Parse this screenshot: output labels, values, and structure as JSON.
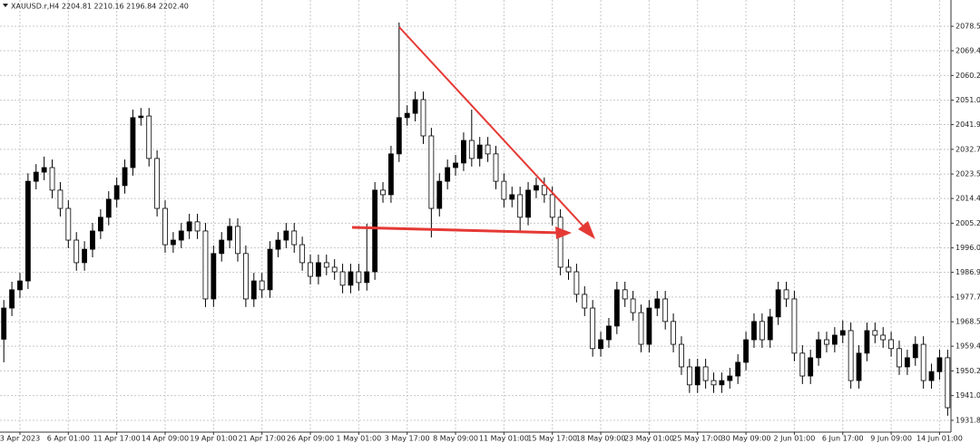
{
  "chart_data": {
    "type": "candlestick",
    "title": "XAUUSD.r,H4  2204.81 2210.16 2196.84 2202.40",
    "categories": [
      null,
      null,
      "3 Apr 2023",
      null,
      null,
      null,
      null,
      null,
      "6 Apr 01:00",
      null,
      null,
      null,
      null,
      null,
      "11 Apr 17:00",
      null,
      null,
      null,
      null,
      null,
      "14 Apr 09:00",
      null,
      null,
      null,
      null,
      null,
      "19 Apr 01:00",
      null,
      null,
      null,
      null,
      null,
      "21 Apr 17:00",
      null,
      null,
      null,
      null,
      null,
      "26 Apr 09:00",
      null,
      null,
      null,
      null,
      null,
      "1 May 01:00",
      null,
      null,
      null,
      null,
      null,
      "3 May 17:00",
      null,
      null,
      null,
      null,
      null,
      "8 May 09:00",
      null,
      null,
      null,
      null,
      null,
      "11 May 01:00",
      null,
      null,
      null,
      null,
      null,
      "15 May 17:00",
      null,
      null,
      null,
      null,
      null,
      "18 May 09:00",
      null,
      null,
      null,
      null,
      null,
      "23 May 01:00",
      null,
      null,
      null,
      null,
      null,
      "25 May 17:00",
      null,
      null,
      null,
      null,
      null,
      "30 May 09:00",
      null,
      null,
      null,
      null,
      null,
      "2 Jun 01:00",
      null,
      null,
      null,
      null,
      null,
      "6 Jun 17:00",
      null,
      null,
      null,
      null,
      null,
      "9 Jun 09:00",
      null,
      null,
      null,
      null,
      null,
      "14 Jun 01:00",
      null
    ],
    "open": [
      1962.0,
      1973.6,
      1980.4,
      1983.7,
      2020.8,
      2024.2,
      2025.9,
      2017.5,
      2010.7,
      1998.9,
      1990.5,
      1995.5,
      2002.3,
      2007.4,
      2014.1,
      2019.2,
      2025.9,
      2044.5,
      2045.1,
      2029.3,
      2010.7,
      1997.2,
      1998.9,
      2002.3,
      2005.7,
      2002.3,
      1977.0,
      1993.9,
      1998.9,
      2004.0,
      1993.9,
      1977.0,
      1983.7,
      1980.4,
      1995.5,
      1998.9,
      2002.3,
      1997.2,
      1990.5,
      1985.4,
      1990.5,
      1988.8,
      1987.1,
      1982.1,
      1987.1,
      1983.1,
      1987.1,
      2017.5,
      2015.8,
      2031.0,
      2044.5,
      2046.1,
      2051.2,
      2037.7,
      2010.7,
      2020.8,
      2025.9,
      2027.6,
      2036.0,
      2029.3,
      2034.3,
      2031.0,
      2020.8,
      2014.1,
      2015.8,
      2007.4,
      2017.5,
      2019.2,
      2015.8,
      2007.4,
      1988.8,
      1987.1,
      1978.7,
      1973.6,
      1958.5,
      1961.8,
      1966.9,
      1980.4,
      1977.0,
      1971.9,
      1960.1,
      1973.6,
      1977.0,
      1968.6,
      1960.1,
      1951.7,
      1945.0,
      1951.7,
      1946.6,
      1945.0,
      1946.6,
      1948.3,
      1953.4,
      1961.8,
      1968.6,
      1961.8,
      1970.3,
      1980.4,
      1977.0,
      1956.8,
      1948.3,
      1955.1,
      1961.8,
      1960.1,
      1963.5,
      1965.2,
      1946.6,
      1956.8,
      1965.2,
      1963.5,
      1961.8,
      1958.5,
      1951.7,
      1955.1,
      1960.1,
      1946.6,
      1949.9,
      1955.1
    ],
    "high": [
      1976.6,
      1983.4,
      1986.7,
      2023.8,
      2027.2,
      2030.0,
      2028.9,
      2020.5,
      2013.7,
      2001.9,
      1998.5,
      2005.3,
      2010.4,
      2017.1,
      2022.2,
      2028.9,
      2047.5,
      2048.1,
      2048.1,
      2032.3,
      2013.7,
      2001.9,
      2005.3,
      2008.7,
      2008.7,
      2005.3,
      1996.9,
      2001.9,
      2007.0,
      2007.0,
      1996.9,
      1986.7,
      1986.7,
      1998.5,
      2001.9,
      2005.3,
      2005.3,
      2000.2,
      1993.5,
      1993.5,
      1993.5,
      1991.8,
      1990.1,
      1990.1,
      1990.1,
      2005.0,
      2020.5,
      2020.5,
      2034.0,
      2079.9,
      2049.1,
      2054.2,
      2054.2,
      2040.7,
      2023.8,
      2028.9,
      2030.6,
      2039.0,
      2047.5,
      2037.3,
      2037.3,
      2034.0,
      2023.8,
      2018.8,
      2018.8,
      2020.5,
      2022.2,
      2022.2,
      2018.8,
      2010.4,
      1991.8,
      1990.1,
      1981.7,
      1976.6,
      1964.8,
      1969.9,
      1983.4,
      1983.4,
      1980.0,
      1974.9,
      1976.6,
      1980.0,
      1980.0,
      1971.6,
      1963.1,
      1954.7,
      1954.7,
      1954.7,
      1949.6,
      1949.6,
      1951.3,
      1956.4,
      1964.8,
      1971.6,
      1971.6,
      1973.3,
      1983.4,
      1983.4,
      1980.0,
      1959.8,
      1958.1,
      1964.8,
      1964.8,
      1966.5,
      1969.0,
      1968.2,
      1959.8,
      1968.2,
      1968.2,
      1966.5,
      1964.8,
      1961.5,
      1958.1,
      1963.1,
      1963.1,
      1952.9,
      1958.1,
      1958.1
    ],
    "low": [
      1953.4,
      1970.6,
      1977.4,
      1980.7,
      2017.8,
      2021.2,
      2014.5,
      2007.7,
      1995.9,
      1987.5,
      1987.5,
      1992.5,
      1999.3,
      2004.4,
      2011.1,
      2016.2,
      2022.9,
      2041.5,
      2026.3,
      2007.7,
      1994.2,
      1994.2,
      1995.9,
      1999.3,
      1999.3,
      1974.0,
      1974.0,
      1990.9,
      1995.9,
      1990.9,
      1974.0,
      1974.0,
      1977.4,
      1977.4,
      1992.5,
      1995.9,
      1994.2,
      1987.5,
      1982.4,
      1982.4,
      1985.8,
      1984.1,
      1979.1,
      1979.1,
      1980.1,
      1980.1,
      1984.1,
      2012.8,
      2012.8,
      2028.0,
      2041.5,
      2043.1,
      2034.7,
      1999.9,
      2007.7,
      2017.8,
      2022.9,
      2024.6,
      2026.3,
      2026.3,
      2028.0,
      2017.8,
      2011.1,
      2011.1,
      2002.0,
      2004.4,
      2014.5,
      2012.8,
      2004.4,
      1985.8,
      1984.1,
      1975.7,
      1970.6,
      1955.5,
      1955.5,
      1958.8,
      1963.9,
      1974.0,
      1968.9,
      1957.1,
      1957.1,
      1970.6,
      1965.6,
      1957.1,
      1948.7,
      1942.0,
      1942.0,
      1943.6,
      1942.0,
      1942.0,
      1943.6,
      1945.3,
      1950.4,
      1958.8,
      1958.8,
      1958.8,
      1967.3,
      1974.0,
      1953.8,
      1945.3,
      1945.3,
      1952.1,
      1957.1,
      1957.1,
      1960.5,
      1943.6,
      1943.6,
      1953.8,
      1960.5,
      1958.8,
      1955.5,
      1948.7,
      1948.7,
      1952.1,
      1943.6,
      1943.6,
      1946.9,
      1933.5
    ],
    "close": [
      1973.6,
      1980.4,
      1983.7,
      2020.8,
      2024.2,
      2025.9,
      2017.5,
      2010.7,
      1998.9,
      1990.5,
      1995.5,
      2002.3,
      2007.4,
      2014.1,
      2019.2,
      2025.9,
      2044.5,
      2045.1,
      2029.3,
      2010.7,
      1997.2,
      1998.9,
      2002.3,
      2005.7,
      2002.3,
      1977.0,
      1993.9,
      1998.9,
      2004.0,
      1993.9,
      1977.0,
      1983.7,
      1980.4,
      1995.5,
      1998.9,
      2002.3,
      1997.2,
      1990.5,
      1985.4,
      1990.5,
      1988.8,
      1987.1,
      1982.1,
      1987.1,
      1983.1,
      1987.1,
      2017.5,
      2015.8,
      2031.0,
      2044.5,
      2046.1,
      2051.2,
      2037.7,
      2010.7,
      2020.8,
      2025.9,
      2027.6,
      2036.0,
      2029.3,
      2034.3,
      2031.0,
      2020.8,
      2014.1,
      2015.8,
      2007.4,
      2017.5,
      2019.2,
      2015.8,
      2007.4,
      1988.8,
      1987.1,
      1978.7,
      1973.6,
      1958.5,
      1961.8,
      1966.9,
      1980.4,
      1977.0,
      1971.9,
      1960.1,
      1973.6,
      1977.0,
      1968.6,
      1960.1,
      1951.7,
      1945.0,
      1951.7,
      1946.6,
      1945.0,
      1946.6,
      1948.3,
      1953.4,
      1961.8,
      1968.6,
      1961.8,
      1970.3,
      1980.4,
      1977.0,
      1956.8,
      1948.3,
      1955.1,
      1961.8,
      1960.1,
      1963.5,
      1965.2,
      1946.6,
      1956.8,
      1965.2,
      1963.5,
      1961.8,
      1958.5,
      1951.7,
      1955.1,
      1960.1,
      1946.6,
      1949.9,
      1955.1,
      1936.5
    ],
    "up_color": "#000000",
    "down_color": "#ffffff",
    "ylim": [
      1927.4,
      2088.3
    ],
    "yticks": [
      {
        "value": 1931.8,
        "label": "1931.80"
      },
      {
        "value": 1941.0,
        "label": "1941.00"
      },
      {
        "value": 1950.2,
        "label": "1950.20"
      },
      {
        "value": 1959.4,
        "label": "1959.40"
      },
      {
        "value": 1968.5,
        "label": "1968.50"
      },
      {
        "value": 1977.7,
        "label": "1977.70"
      },
      {
        "value": 1986.9,
        "label": "1986.90"
      },
      {
        "value": 1996.0,
        "label": "1996.00"
      },
      {
        "value": 2005.2,
        "label": "2005.20"
      },
      {
        "value": 2014.4,
        "label": "2014.40"
      },
      {
        "value": 2023.5,
        "label": "2023.50"
      },
      {
        "value": 2032.7,
        "label": "2032.70"
      },
      {
        "value": 2041.9,
        "label": "2041.90"
      },
      {
        "value": 2051.0,
        "label": "2051.00"
      },
      {
        "value": 2060.2,
        "label": "2060.20"
      },
      {
        "value": 2069.4,
        "label": "2069.40"
      },
      {
        "value": 2078.5,
        "label": "2078.50"
      }
    ],
    "grid": true
  }
}
